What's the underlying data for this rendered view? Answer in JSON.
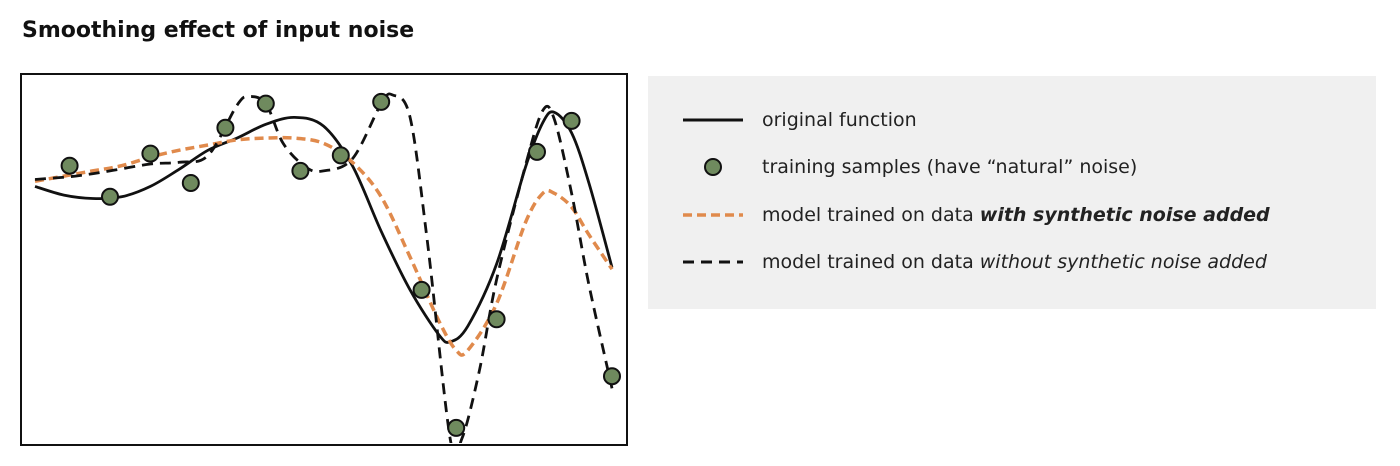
{
  "chart_data": {
    "type": "line",
    "title": "Smoothing effect of input noise",
    "xlabel": "",
    "ylabel": "",
    "xlim": [
      0,
      1
    ],
    "ylim": [
      -1,
      1
    ],
    "grid": false,
    "legend_placement": "right",
    "series": [
      {
        "name": "original function",
        "style": "solid",
        "color": "#111111",
        "x": [
          0.0,
          0.05,
          0.1,
          0.15,
          0.2,
          0.25,
          0.3,
          0.35,
          0.4,
          0.45,
          0.5,
          0.55,
          0.6,
          0.65,
          0.7,
          0.72,
          0.75,
          0.8,
          0.85,
          0.88,
          0.9,
          0.93,
          0.96,
          1.0
        ],
        "values": [
          0.47,
          0.42,
          0.4,
          0.41,
          0.47,
          0.57,
          0.68,
          0.75,
          0.83,
          0.87,
          0.82,
          0.59,
          0.21,
          -0.13,
          -0.39,
          -0.43,
          -0.34,
          0.02,
          0.58,
          0.84,
          0.9,
          0.78,
          0.49,
          0.0
        ]
      },
      {
        "name": "model trained on data with synthetic noise added",
        "style": "dashed",
        "color": "#e08a4c",
        "x": [
          0.0,
          0.05,
          0.1,
          0.15,
          0.2,
          0.25,
          0.3,
          0.35,
          0.4,
          0.45,
          0.5,
          0.55,
          0.6,
          0.65,
          0.7,
          0.73,
          0.75,
          0.8,
          0.85,
          0.88,
          0.9,
          0.93,
          0.96,
          1.0
        ],
        "values": [
          0.5,
          0.53,
          0.56,
          0.59,
          0.64,
          0.68,
          0.71,
          0.74,
          0.75,
          0.75,
          0.72,
          0.61,
          0.41,
          0.06,
          -0.31,
          -0.48,
          -0.48,
          -0.21,
          0.26,
          0.43,
          0.43,
          0.35,
          0.19,
          -0.01
        ]
      },
      {
        "name": "model trained on data without synthetic noise added",
        "style": "dashed",
        "color": "#111111",
        "x": [
          0.0,
          0.07,
          0.13,
          0.2,
          0.25,
          0.3,
          0.35,
          0.37,
          0.4,
          0.43,
          0.47,
          0.5,
          0.55,
          0.6,
          0.62,
          0.65,
          0.68,
          0.72,
          0.74,
          0.77,
          0.8,
          0.85,
          0.88,
          0.9,
          0.93,
          0.96,
          1.0
        ],
        "values": [
          0.51,
          0.53,
          0.56,
          0.6,
          0.61,
          0.65,
          0.94,
          0.99,
          0.95,
          0.72,
          0.58,
          0.56,
          0.63,
          0.95,
          1.0,
          0.87,
          0.15,
          -1.0,
          -0.99,
          -0.6,
          -0.07,
          0.59,
          0.91,
          0.86,
          0.43,
          -0.1,
          -0.7
        ]
      }
    ],
    "scatter": {
      "name": "training samples (have “natural” noise)",
      "color": "#6f8a5e",
      "x": [
        0.06,
        0.13,
        0.2,
        0.27,
        0.33,
        0.4,
        0.46,
        0.53,
        0.6,
        0.67,
        0.73,
        0.8,
        0.87,
        0.93,
        1.0
      ],
      "values": [
        0.59,
        0.41,
        0.66,
        0.49,
        0.81,
        0.95,
        0.56,
        0.65,
        0.96,
        -0.13,
        -0.93,
        -0.3,
        0.67,
        0.85,
        -0.63
      ]
    }
  },
  "legend": {
    "items": [
      {
        "text": "original function",
        "emph": ""
      },
      {
        "text": "training samples (have “natural” noise)",
        "emph": ""
      },
      {
        "text": "model trained on data ",
        "emph": "with synthetic noise added"
      },
      {
        "text": "model trained on data ",
        "emph": "without synthetic noise added"
      }
    ]
  }
}
